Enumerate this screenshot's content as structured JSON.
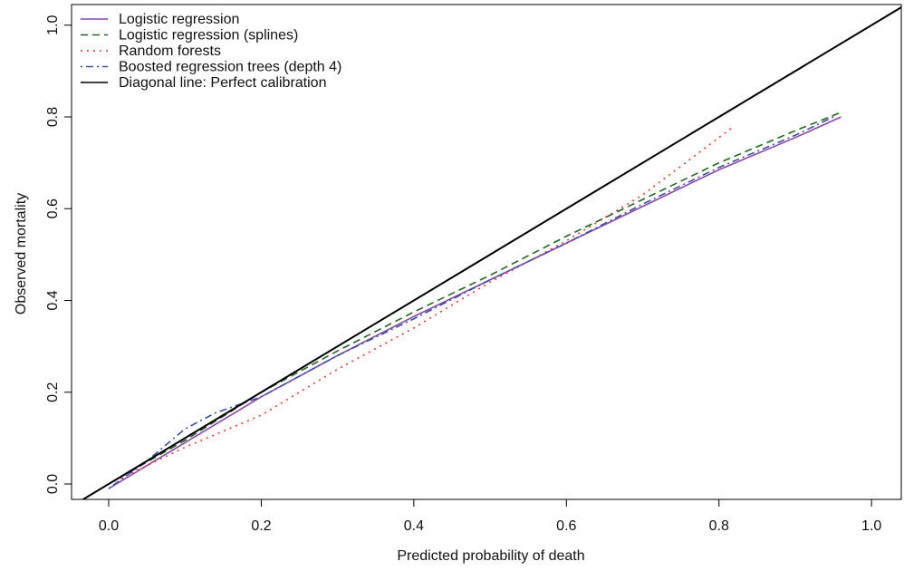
{
  "chart_data": {
    "type": "line",
    "xlabel": "Predicted probability of death",
    "ylabel": "Observed mortality",
    "xlim": [
      -0.0487,
      1.039
    ],
    "ylim": [
      -0.0336,
      1.045
    ],
    "xticks": [
      {
        "value": 0,
        "label": "0.0"
      },
      0.2,
      0.4,
      0.6,
      0.8,
      {
        "value": 1,
        "label": "1.0"
      }
    ],
    "yticks": [
      {
        "value": 0,
        "label": "0.0"
      },
      0.2,
      0.4,
      0.6,
      0.8,
      {
        "value": 1,
        "label": "1.0"
      }
    ],
    "legend": "upper left",
    "series": [
      {
        "name": "Logistic regression",
        "color": "#8e44ad",
        "linestyle": "solid",
        "x": [
          0,
          0.02,
          0.1,
          0.2,
          0.3,
          0.4,
          0.5,
          0.6,
          0.7,
          0.8,
          0.9,
          0.96
        ],
        "values": [
          -0.01,
          0.01,
          0.09,
          0.19,
          0.28,
          0.365,
          0.445,
          0.525,
          0.605,
          0.685,
          0.755,
          0.8
        ]
      },
      {
        "name": "Logistic regression (splines)",
        "color": "#1e6b1e",
        "linestyle": "dashed",
        "x": [
          0,
          0.1,
          0.2,
          0.3,
          0.4,
          0.5,
          0.6,
          0.7,
          0.8,
          0.9,
          0.96
        ],
        "values": [
          0.0,
          0.095,
          0.2,
          0.29,
          0.375,
          0.455,
          0.54,
          0.62,
          0.7,
          0.77,
          0.81
        ]
      },
      {
        "name": "Random forests",
        "color": "#e8392b",
        "linestyle": "dotted",
        "x": [
          0,
          0.1,
          0.2,
          0.3,
          0.4,
          0.5,
          0.6,
          0.7,
          0.82
        ],
        "values": [
          0.0,
          0.08,
          0.15,
          0.25,
          0.34,
          0.44,
          0.53,
          0.63,
          0.78
        ]
      },
      {
        "name": "Boosted regression trees (depth 4)",
        "color": "#3b4fa8",
        "linestyle": "dashdot",
        "x": [
          0,
          0.05,
          0.1,
          0.14,
          0.2,
          0.3,
          0.4,
          0.5,
          0.6,
          0.7,
          0.8,
          0.9,
          0.95
        ],
        "values": [
          -0.01,
          0.05,
          0.12,
          0.155,
          0.19,
          0.28,
          0.36,
          0.445,
          0.525,
          0.61,
          0.69,
          0.76,
          0.8
        ]
      },
      {
        "name": "Diagonal line: Perfect calibration",
        "color": "#000000",
        "linestyle": "solid",
        "x": [
          -0.05,
          1.05
        ],
        "values": [
          -0.05,
          1.05
        ]
      }
    ]
  }
}
